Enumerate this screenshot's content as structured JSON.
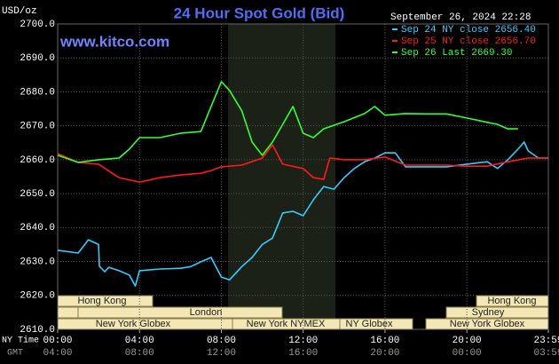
{
  "chart_data": {
    "type": "line",
    "title": "24 Hour Spot Gold (Bid)",
    "y_unit": "USD/oz",
    "watermark": "www.kitco.com",
    "timestamp": "September 26, 2024 22:28",
    "x_row_label": "NY Time",
    "x2_row_label": "GMT",
    "xlim": [
      0,
      23.983
    ],
    "xticks": [
      {
        "value": 0,
        "label": "00:00"
      },
      {
        "value": 4,
        "label": "04:00"
      },
      {
        "value": 8,
        "label": "08:00"
      },
      {
        "value": 12,
        "label": "12:00"
      },
      {
        "value": 16,
        "label": "16:00"
      },
      {
        "value": 20,
        "label": "20:00"
      },
      {
        "value": 23.983,
        "label": "23:59"
      }
    ],
    "x2ticks": [
      "04:00",
      "08:00",
      "12:00",
      "16:00",
      "20:00",
      "00:00",
      "03:59"
    ],
    "ylim": [
      2610,
      2700
    ],
    "yticks": [
      {
        "value": 2610,
        "label": "2610.0"
      },
      {
        "value": 2620,
        "label": "2620.0"
      },
      {
        "value": 2630,
        "label": "2630.0"
      },
      {
        "value": 2640,
        "label": "2640.0"
      },
      {
        "value": 2650,
        "label": "2650.0"
      },
      {
        "value": 2660,
        "label": "2660.0"
      },
      {
        "value": 2670,
        "label": "2670.0"
      },
      {
        "value": 2680,
        "label": "2680.0"
      },
      {
        "value": 2690,
        "label": "2690.0"
      },
      {
        "value": 2700,
        "label": "2700.0"
      }
    ],
    "grid": true,
    "sessions": [
      "Hong Kong",
      "Hong Kong",
      "London",
      "Sydney",
      "New York Globex",
      "New York NYMEX",
      "NY Globex",
      "New York Globex"
    ],
    "series": [
      {
        "name": "Sep 24 NY close 2656.40",
        "color": "#33ccff",
        "x": [
          0,
          1,
          1.5,
          2,
          2.04,
          2.3,
          2.5,
          3,
          3.5,
          3.8,
          4,
          5,
          6,
          6.5,
          7,
          7.5,
          8,
          8.4,
          9,
          9.5,
          10,
          10.5,
          11,
          11.5,
          12,
          12.5,
          13,
          13.5,
          14,
          14.5,
          15,
          15.5,
          16,
          16.5,
          17,
          18,
          19,
          20,
          21,
          21.5,
          22,
          22.5,
          22.8,
          23,
          23.5,
          23.983
        ],
        "values": [
          2633.3,
          2632.5,
          2636.4,
          2635.0,
          2628.6,
          2627.0,
          2628.3,
          2627.3,
          2626.0,
          2622.8,
          2627.3,
          2627.8,
          2628.0,
          2628.5,
          2629.9,
          2631.2,
          2625.4,
          2624.6,
          2628.5,
          2631.2,
          2635.0,
          2636.9,
          2644.3,
          2644.8,
          2643.5,
          2648.2,
          2652.1,
          2651.3,
          2654.7,
          2657.4,
          2659.4,
          2660.5,
          2662.0,
          2662.0,
          2657.9,
          2657.9,
          2657.9,
          2658.7,
          2659.4,
          2657.4,
          2660.0,
          2663.1,
          2665.2,
          2662.6,
          2660.5,
          2660.5
        ]
      },
      {
        "name": "Sep 25 NY close 2656.70",
        "color": "#ff1a1a",
        "x": [
          0,
          1,
          2,
          3,
          4,
          5,
          6,
          7,
          7.5,
          8,
          9,
          10,
          10.5,
          11,
          12,
          12.5,
          13,
          13.3,
          14,
          15,
          16,
          17,
          18,
          19,
          20,
          21,
          22,
          23,
          23.983
        ],
        "values": [
          2661.8,
          2659.2,
          2658.7,
          2654.7,
          2653.4,
          2654.7,
          2655.5,
          2656.0,
          2656.8,
          2657.9,
          2658.4,
          2660.5,
          2664.4,
          2658.7,
          2657.4,
          2654.7,
          2654.2,
          2660.5,
          2660.0,
          2660.0,
          2660.8,
          2658.4,
          2658.4,
          2658.4,
          2658.1,
          2658.1,
          2659.4,
          2660.5,
          2660.5
        ]
      },
      {
        "name": "Sep 26 Last 2669.30",
        "color": "#33ff33",
        "x": [
          0,
          1,
          2,
          3,
          3.5,
          4,
          5,
          6,
          7,
          7.5,
          8,
          8.4,
          9,
          9.5,
          10,
          10.5,
          11,
          11.5,
          12,
          12.5,
          13,
          14,
          15,
          15.5,
          16,
          17,
          18,
          19,
          20,
          21,
          21.5,
          22,
          22.5
        ],
        "values": [
          2661.3,
          2659.2,
          2660.0,
          2660.5,
          2663.1,
          2666.5,
          2666.5,
          2667.8,
          2668.3,
          2675.7,
          2683.0,
          2680.4,
          2674.4,
          2665.2,
          2661.3,
          2665.2,
          2670.4,
          2675.7,
          2667.8,
          2666.5,
          2669.1,
          2671.2,
          2673.6,
          2675.7,
          2673.1,
          2673.6,
          2673.5,
          2673.5,
          2672.3,
          2671.0,
          2670.4,
          2669.1,
          2669.1
        ]
      }
    ]
  }
}
